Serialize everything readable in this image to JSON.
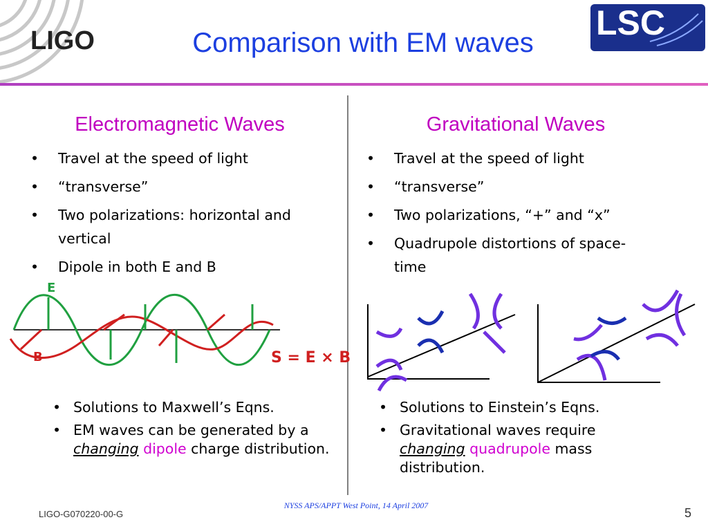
{
  "header": {
    "logo_left": "LIGO",
    "title": "Comparison with EM waves",
    "logo_right": "LSC"
  },
  "columns": [
    {
      "heading": "Electromagnetic Waves",
      "bullets": [
        "Travel at the speed of light",
        "“transverse”",
        "Two polarizations: horizontal and vertical",
        "Dipole in both E and B"
      ],
      "figure_labels": [
        "E",
        "B",
        "S = E × B"
      ],
      "notes": [
        [
          "Solutions to Maxwell’s Eqns."
        ],
        [
          "EM waves can be generated by a ",
          "changing",
          " dipole",
          " charge distribution."
        ]
      ]
    },
    {
      "heading": "Gravitational Waves",
      "bullets": [
        "Travel at the speed of light",
        "“transverse”",
        "Two polarizations, “+” and “x”",
        "Quadrupole distortions of space-time"
      ],
      "notes": [
        [
          "Solutions to Einstein’s Eqns."
        ],
        [
          "Gravitational waves require ",
          "changing",
          " quadrupole",
          " mass distribution."
        ]
      ]
    }
  ],
  "footer": {
    "doc_id": "LIGO-G070220-00-G",
    "event": "NYSS APS/APPT West Point, 14 April 2007",
    "page": 5
  }
}
